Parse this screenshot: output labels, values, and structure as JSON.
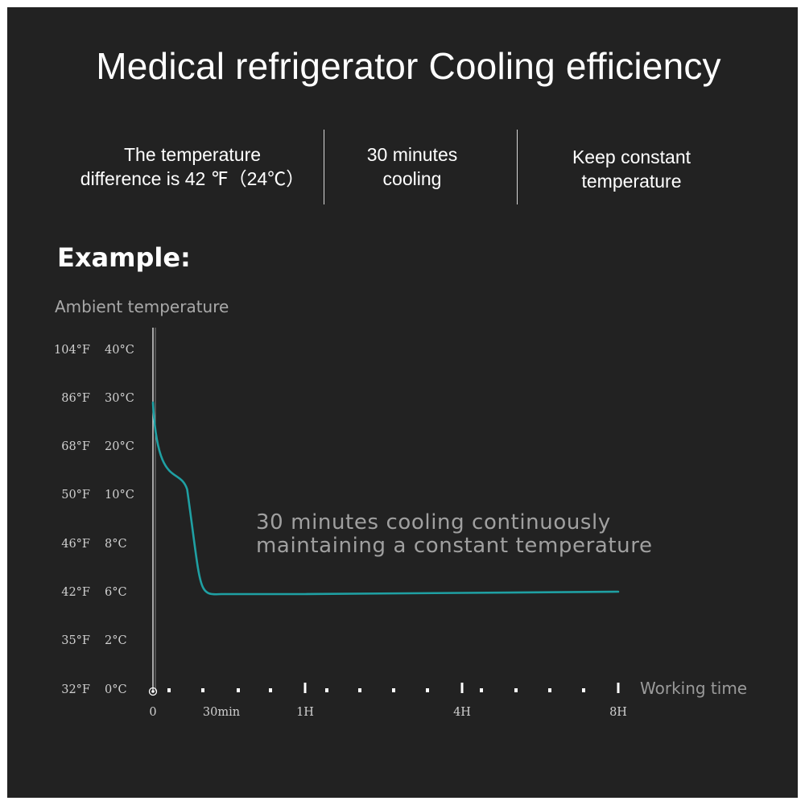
{
  "title": "Medical refrigerator Cooling efficiency",
  "features": [
    {
      "line1": "The temperature",
      "line2": "difference is 42 ℉（24℃）"
    },
    {
      "line1": "30 minutes",
      "line2": "cooling"
    },
    {
      "line1": "Keep constant",
      "line2": "temperature"
    }
  ],
  "example_label": "Example:",
  "colors": {
    "background": "#222222",
    "curve": "#1fa0a3",
    "text": "#ffffff",
    "muted": "#a0a0a0"
  },
  "chart_data": {
    "type": "line",
    "ylabel": "Ambient temperature",
    "xlabel": "Working time",
    "y_ticks": [
      {
        "f": "104°F",
        "c": "40°C"
      },
      {
        "f": "86°F",
        "c": "30°C"
      },
      {
        "f": "68°F",
        "c": "20°C"
      },
      {
        "f": "50°F",
        "c": "10°C"
      },
      {
        "f": "46°F",
        "c": "8°C"
      },
      {
        "f": "42°F",
        "c": "6°C"
      },
      {
        "f": "35°F",
        "c": "2°C"
      },
      {
        "f": "32°F",
        "c": "0°C"
      }
    ],
    "x_ticks": [
      {
        "label": "0",
        "hours": 0
      },
      {
        "label": "30min",
        "hours": 0.5
      },
      {
        "label": "1H",
        "hours": 1
      },
      {
        "label": "4H",
        "hours": 4
      },
      {
        "label": "8H",
        "hours": 8
      }
    ],
    "series": [
      {
        "values": [
          {
            "x": "0",
            "y": 29
          },
          {
            "x": "15min",
            "y": 11
          },
          {
            "x": "30min",
            "y": 5.8
          },
          {
            "x": "1H",
            "y": 5.8
          },
          {
            "x": "4H",
            "y": 5.9
          },
          {
            "x": "8H",
            "y": 6.0
          }
        ]
      }
    ],
    "annotation": [
      "30 minutes cooling continuously",
      "maintaining a constant temperature"
    ],
    "grid": false
  }
}
